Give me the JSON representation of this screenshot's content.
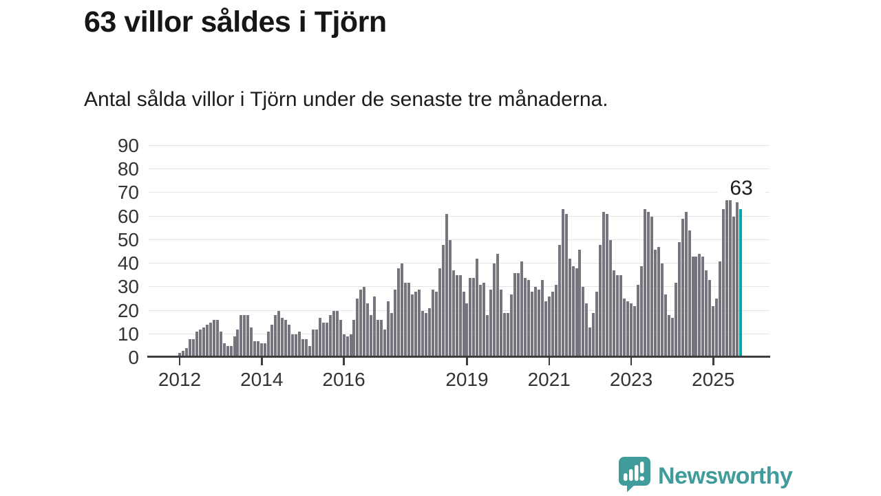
{
  "header": {
    "title": "63 villor såldes i Tjörn",
    "subtitle": "Antal sålda villor i Tjörn under de senaste tre månaderna."
  },
  "chart_data": {
    "type": "bar",
    "title": "63 villor såldes i Tjörn",
    "subtitle": "Antal sålda villor i Tjörn under de senaste tre månaderna.",
    "x_unit": "month",
    "x_range": [
      "2012-01",
      "2025-09"
    ],
    "y_axis": {
      "min": 0,
      "max": 90,
      "step": 10
    },
    "grid": true,
    "x_ticks": [
      {
        "label": "2012",
        "month_index": 0
      },
      {
        "label": "2014",
        "month_index": 24
      },
      {
        "label": "2016",
        "month_index": 48
      },
      {
        "label": "2019",
        "month_index": 84
      },
      {
        "label": "2021",
        "month_index": 108
      },
      {
        "label": "2023",
        "month_index": 132
      },
      {
        "label": "2025",
        "month_index": 156
      }
    ],
    "values_by_year": [
      {
        "year": 2012,
        "monthly": [
          2,
          3,
          4,
          8,
          8,
          11,
          12,
          13,
          14,
          15,
          16,
          16
        ]
      },
      {
        "year": 2013,
        "monthly": [
          11,
          6,
          5,
          5,
          9,
          12,
          18,
          18,
          18,
          13,
          7,
          7
        ]
      },
      {
        "year": 2014,
        "monthly": [
          6,
          6,
          11,
          14,
          18,
          20,
          17,
          16,
          14,
          10,
          10,
          11
        ]
      },
      {
        "year": 2015,
        "monthly": [
          8,
          8,
          5,
          12,
          12,
          17,
          15,
          15,
          18,
          20,
          20,
          16
        ]
      },
      {
        "year": 2016,
        "monthly": [
          10,
          9,
          10,
          16,
          25,
          29,
          30,
          23,
          18,
          26,
          16,
          16
        ]
      },
      {
        "year": 2017,
        "monthly": [
          12,
          24,
          19,
          29,
          38,
          40,
          32,
          32,
          27,
          28,
          29,
          20
        ]
      },
      {
        "year": 2018,
        "monthly": [
          19,
          21,
          29,
          28,
          38,
          48,
          61,
          50,
          37,
          35,
          35,
          28
        ]
      },
      {
        "year": 2019,
        "monthly": [
          23,
          34,
          34,
          42,
          31,
          32,
          18,
          29,
          40,
          44,
          29,
          19
        ]
      },
      {
        "year": 2020,
        "monthly": [
          19,
          27,
          36,
          36,
          41,
          34,
          33,
          28,
          30,
          29,
          33,
          24
        ]
      },
      {
        "year": 2021,
        "monthly": [
          26,
          28,
          31,
          48,
          63,
          61,
          42,
          39,
          38,
          46,
          30,
          23
        ]
      },
      {
        "year": 2022,
        "monthly": [
          13,
          19,
          28,
          48,
          62,
          61,
          50,
          37,
          35,
          35,
          25,
          24
        ]
      },
      {
        "year": 2023,
        "monthly": [
          23,
          22,
          31,
          39,
          63,
          62,
          60,
          46,
          47,
          40,
          27,
          18
        ]
      },
      {
        "year": 2024,
        "monthly": [
          17,
          32,
          49,
          59,
          62,
          54,
          43,
          43,
          44,
          43,
          37,
          33
        ]
      },
      {
        "year": 2025,
        "monthly": [
          22,
          25,
          41,
          63,
          72,
          67,
          60,
          66,
          63
        ]
      }
    ],
    "highlight_last_bar": true,
    "annotation": {
      "label": "63",
      "value": 63,
      "target": "last-bar"
    },
    "legend": false
  },
  "colors": {
    "bar": "#75757d",
    "highlight": "#00a2a6",
    "grid": "#e4e4e6",
    "axis": "#3d3d3d",
    "label_text": "#333333",
    "logo": "#3f9c9a"
  },
  "footer": {
    "brand": "Newsworthy"
  }
}
